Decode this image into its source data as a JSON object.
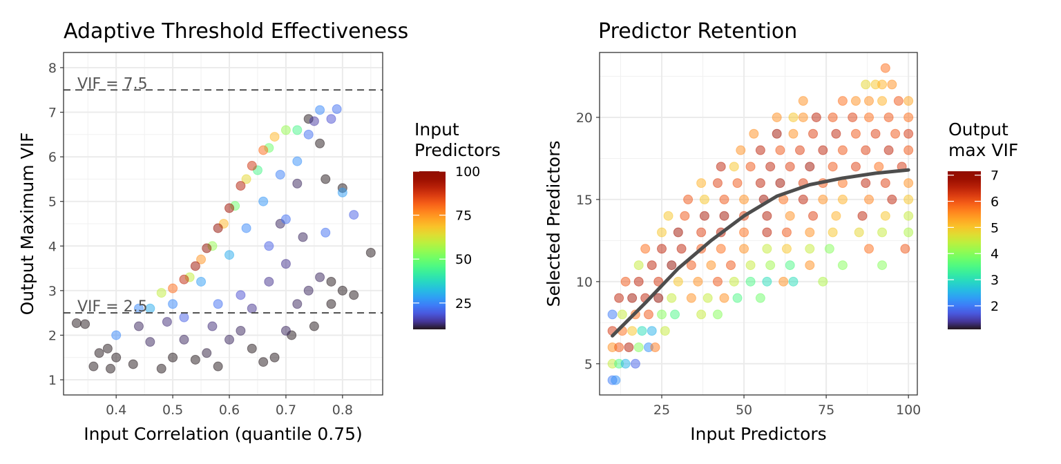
{
  "chart_data": [
    {
      "type": "scatter",
      "title": "Adaptive Threshold Effectiveness",
      "xlabel": "Input Correlation (quantile 0.75)",
      "ylabel": "Output Maximum VIF",
      "xlim": [
        0.307,
        0.871
      ],
      "ylim": [
        0.66,
        8.34
      ],
      "xticks": [
        0.4,
        0.5,
        0.6,
        0.7,
        0.8
      ],
      "xtick_labels": [
        "0.4",
        "0.5",
        "0.6",
        "0.7",
        "0.8"
      ],
      "yticks": [
        1,
        2,
        3,
        4,
        5,
        6,
        7,
        8
      ],
      "ytick_labels": [
        "1",
        "2",
        "3",
        "4",
        "5",
        "6",
        "7",
        "8"
      ],
      "grid": true,
      "hlines": [
        {
          "y": 7.5,
          "label": "VIF = 7.5"
        },
        {
          "y": 2.5,
          "label": "VIF = 2.5"
        }
      ],
      "color_legend": {
        "title_lines": [
          "Input",
          "Predictors"
        ],
        "range": [
          10,
          100
        ],
        "ticks": [
          25,
          50,
          75,
          100
        ],
        "tick_labels": [
          "25",
          "50",
          "75",
          "100"
        ],
        "colormap": "turbo"
      },
      "legend_position": "right",
      "point_columns": [
        "x",
        "y",
        "color"
      ],
      "points": [
        [
          0.48,
          2.95,
          60
        ],
        [
          0.5,
          3.05,
          80
        ],
        [
          0.52,
          3.25,
          90
        ],
        [
          0.54,
          3.55,
          95
        ],
        [
          0.56,
          3.95,
          100
        ],
        [
          0.58,
          4.4,
          98
        ],
        [
          0.6,
          4.85,
          95
        ],
        [
          0.62,
          5.35,
          92
        ],
        [
          0.64,
          5.8,
          88
        ],
        [
          0.66,
          6.15,
          80
        ],
        [
          0.68,
          6.45,
          70
        ],
        [
          0.7,
          6.6,
          55
        ],
        [
          0.72,
          6.6,
          45
        ],
        [
          0.55,
          3.7,
          75
        ],
        [
          0.59,
          4.5,
          70
        ],
        [
          0.63,
          5.5,
          65
        ],
        [
          0.67,
          6.2,
          50
        ],
        [
          0.53,
          3.3,
          60
        ],
        [
          0.57,
          4.0,
          55
        ],
        [
          0.61,
          4.9,
          50
        ],
        [
          0.65,
          5.7,
          45
        ],
        [
          0.46,
          2.6,
          30
        ],
        [
          0.5,
          2.7,
          25
        ],
        [
          0.55,
          3.2,
          28
        ],
        [
          0.6,
          3.8,
          30
        ],
        [
          0.63,
          4.4,
          25
        ],
        [
          0.66,
          5.0,
          27
        ],
        [
          0.69,
          5.6,
          24
        ],
        [
          0.72,
          5.9,
          26
        ],
        [
          0.74,
          6.5,
          22
        ],
        [
          0.76,
          7.05,
          25
        ],
        [
          0.79,
          7.07,
          22
        ],
        [
          0.78,
          6.85,
          18
        ],
        [
          0.75,
          6.8,
          15
        ],
        [
          0.7,
          4.6,
          22
        ],
        [
          0.67,
          4.0,
          20
        ],
        [
          0.58,
          2.7,
          22
        ],
        [
          0.52,
          2.4,
          20
        ],
        [
          0.44,
          2.6,
          25
        ],
        [
          0.4,
          2.0,
          25
        ],
        [
          0.8,
          5.2,
          28
        ],
        [
          0.82,
          4.7,
          20
        ],
        [
          0.77,
          4.3,
          22
        ],
        [
          0.62,
          2.9,
          18
        ],
        [
          0.33,
          2.27,
          10
        ],
        [
          0.345,
          2.25,
          10
        ],
        [
          0.36,
          1.3,
          10
        ],
        [
          0.37,
          1.6,
          10
        ],
        [
          0.385,
          1.7,
          10
        ],
        [
          0.39,
          1.25,
          10
        ],
        [
          0.4,
          1.5,
          10
        ],
        [
          0.43,
          1.35,
          10
        ],
        [
          0.44,
          2.2,
          12
        ],
        [
          0.46,
          1.85,
          12
        ],
        [
          0.48,
          1.25,
          10
        ],
        [
          0.5,
          1.5,
          10
        ],
        [
          0.52,
          1.9,
          12
        ],
        [
          0.54,
          1.45,
          10
        ],
        [
          0.56,
          1.6,
          11
        ],
        [
          0.58,
          1.3,
          10
        ],
        [
          0.6,
          1.9,
          12
        ],
        [
          0.62,
          2.1,
          12
        ],
        [
          0.64,
          1.7,
          10
        ],
        [
          0.66,
          1.4,
          10
        ],
        [
          0.68,
          1.5,
          10
        ],
        [
          0.7,
          2.1,
          12
        ],
        [
          0.72,
          2.7,
          12
        ],
        [
          0.74,
          3.0,
          12
        ],
        [
          0.76,
          3.3,
          12
        ],
        [
          0.78,
          3.2,
          10
        ],
        [
          0.8,
          3.0,
          10
        ],
        [
          0.82,
          2.9,
          10
        ],
        [
          0.85,
          3.85,
          10
        ],
        [
          0.8,
          5.3,
          10
        ],
        [
          0.77,
          5.5,
          10
        ],
        [
          0.76,
          6.3,
          10
        ],
        [
          0.74,
          6.85,
          10
        ],
        [
          0.73,
          4.2,
          12
        ],
        [
          0.7,
          3.6,
          14
        ],
        [
          0.67,
          3.2,
          14
        ],
        [
          0.64,
          2.6,
          14
        ],
        [
          0.57,
          2.2,
          13
        ],
        [
          0.49,
          2.3,
          13
        ],
        [
          0.75,
          2.2,
          10
        ],
        [
          0.71,
          2.0,
          10
        ],
        [
          0.78,
          2.7,
          10
        ],
        [
          0.69,
          4.5,
          12
        ],
        [
          0.72,
          5.4,
          12
        ]
      ]
    },
    {
      "type": "scatter",
      "title": "Predictor Retention",
      "xlabel": "Input Predictors",
      "ylabel": "Selected Predictors",
      "xlim": [
        6.1,
        102.7
      ],
      "ylim": [
        3.1,
        23.95
      ],
      "xticks": [
        25,
        50,
        75,
        100
      ],
      "xtick_labels": [
        "25",
        "50",
        "75",
        "100"
      ],
      "yticks": [
        5,
        10,
        15,
        20
      ],
      "ytick_labels": [
        "5",
        "10",
        "15",
        "20"
      ],
      "grid": true,
      "color_legend": {
        "title_lines": [
          "Output",
          "max VIF"
        ],
        "range": [
          1.1,
          7.15
        ],
        "ticks": [
          2,
          3,
          4,
          5,
          6,
          7
        ],
        "tick_labels": [
          "2",
          "3",
          "4",
          "5",
          "6",
          "7"
        ],
        "colormap": "turbo"
      },
      "legend_position": "right",
      "point_columns": [
        "x",
        "y",
        "color"
      ],
      "points": [
        [
          10,
          4,
          2
        ],
        [
          11,
          4,
          2.2
        ],
        [
          10,
          5,
          4.5
        ],
        [
          12,
          5,
          3.5
        ],
        [
          14,
          5,
          2.5
        ],
        [
          17,
          5,
          1.8
        ],
        [
          10,
          6,
          5.5
        ],
        [
          12,
          6,
          6
        ],
        [
          15,
          6,
          6.6
        ],
        [
          18,
          6,
          4
        ],
        [
          21,
          6,
          2.2
        ],
        [
          23,
          6,
          5.7
        ],
        [
          10,
          7,
          6.3
        ],
        [
          13,
          7,
          5.8
        ],
        [
          16,
          7,
          5
        ],
        [
          19,
          7,
          3
        ],
        [
          22,
          7,
          2.5
        ],
        [
          26,
          7,
          4.5
        ],
        [
          10,
          8,
          2
        ],
        [
          13,
          8,
          4.5
        ],
        [
          17,
          8,
          5.8
        ],
        [
          21,
          8,
          6
        ],
        [
          25,
          8,
          4
        ],
        [
          29,
          8,
          3.5
        ],
        [
          37,
          8,
          4.5
        ],
        [
          42,
          8,
          4
        ],
        [
          12,
          9,
          6.5
        ],
        [
          16,
          9,
          6.8
        ],
        [
          20,
          9,
          6.5
        ],
        [
          24,
          9,
          7
        ],
        [
          28,
          9,
          4.5
        ],
        [
          34,
          9,
          5.5
        ],
        [
          39,
          9,
          4.5
        ],
        [
          44,
          9,
          5.5
        ],
        [
          48,
          9,
          3.5
        ],
        [
          55,
          9,
          3.8
        ],
        [
          14,
          10,
          6
        ],
        [
          18,
          10,
          6.5
        ],
        [
          24,
          10,
          6.3
        ],
        [
          30,
          10,
          5
        ],
        [
          36,
          10,
          5.5
        ],
        [
          42,
          10,
          6
        ],
        [
          47,
          10,
          4.5
        ],
        [
          52,
          10,
          3.5
        ],
        [
          57,
          10,
          3
        ],
        [
          62,
          10,
          5.5
        ],
        [
          65,
          10,
          3
        ],
        [
          74,
          10,
          4.3
        ],
        [
          18,
          11,
          4.5
        ],
        [
          22,
          11,
          6.5
        ],
        [
          28,
          11,
          7
        ],
        [
          34,
          11,
          6
        ],
        [
          40,
          11,
          5.5
        ],
        [
          46,
          11,
          6
        ],
        [
          52,
          11,
          4.5
        ],
        [
          58,
          11,
          4.2
        ],
        [
          64,
          11,
          3.5
        ],
        [
          70,
          11,
          5.5
        ],
        [
          80,
          11,
          4
        ],
        [
          92,
          11,
          4
        ],
        [
          20,
          12,
          5.8
        ],
        [
          25,
          12,
          6.5
        ],
        [
          31,
          12,
          6.5
        ],
        [
          37,
          12,
          6
        ],
        [
          43,
          12,
          5.8
        ],
        [
          50,
          12,
          5.5
        ],
        [
          57,
          12,
          4.5
        ],
        [
          63,
          12,
          5
        ],
        [
          70,
          12,
          4.5
        ],
        [
          76,
          12,
          4
        ],
        [
          88,
          12,
          5.8
        ],
        [
          99,
          12,
          6
        ],
        [
          25,
          13,
          5
        ],
        [
          30,
          13,
          6.8
        ],
        [
          37,
          13,
          6.2
        ],
        [
          43,
          13,
          6.5
        ],
        [
          50,
          13,
          5.8
        ],
        [
          57,
          13,
          6.5
        ],
        [
          63,
          13,
          6
        ],
        [
          70,
          13,
          5.5
        ],
        [
          77,
          13,
          5
        ],
        [
          85,
          13,
          4.8
        ],
        [
          92,
          13,
          4.5
        ],
        [
          100,
          13,
          4.3
        ],
        [
          27,
          14,
          5
        ],
        [
          32,
          14,
          6
        ],
        [
          38,
          14,
          6.7
        ],
        [
          44,
          14,
          6.8
        ],
        [
          50,
          14,
          6.2
        ],
        [
          57,
          14,
          6.6
        ],
        [
          64,
          14,
          5.5
        ],
        [
          71,
          14,
          6.2
        ],
        [
          78,
          14,
          5.2
        ],
        [
          86,
          14,
          6.5
        ],
        [
          93,
          14,
          5
        ],
        [
          100,
          14,
          4.5
        ],
        [
          33,
          15,
          6
        ],
        [
          38,
          15,
          5
        ],
        [
          44,
          15,
          6
        ],
        [
          50,
          15,
          5.5
        ],
        [
          56,
          15,
          6.8
        ],
        [
          62,
          15,
          5.8
        ],
        [
          68,
          15,
          6.5
        ],
        [
          74,
          15,
          5.5
        ],
        [
          80,
          15,
          5.2
        ],
        [
          88,
          15,
          5.6
        ],
        [
          95,
          15,
          6.5
        ],
        [
          100,
          15,
          5
        ],
        [
          37,
          16,
          5.2
        ],
        [
          42,
          16,
          6.2
        ],
        [
          48,
          16,
          6
        ],
        [
          55,
          16,
          6.5
        ],
        [
          61,
          16,
          6.8
        ],
        [
          68,
          16,
          6.2
        ],
        [
          74,
          16,
          6
        ],
        [
          80,
          16,
          5.8
        ],
        [
          87,
          16,
          6.5
        ],
        [
          93,
          16,
          6.2
        ],
        [
          100,
          16,
          5.5
        ],
        [
          43,
          17,
          6.5
        ],
        [
          47,
          17,
          5
        ],
        [
          52,
          17,
          6
        ],
        [
          58,
          17,
          6.5
        ],
        [
          64,
          17,
          6.2
        ],
        [
          70,
          17,
          6.8
        ],
        [
          77,
          17,
          6
        ],
        [
          84,
          17,
          6.2
        ],
        [
          91,
          17,
          5.8
        ],
        [
          98,
          17,
          6.3
        ],
        [
          49,
          18,
          5.5
        ],
        [
          55,
          18,
          6.5
        ],
        [
          61,
          18,
          6
        ],
        [
          67,
          18,
          6.2
        ],
        [
          74,
          18,
          6.5
        ],
        [
          80,
          18,
          6
        ],
        [
          87,
          18,
          6.2
        ],
        [
          94,
          18,
          6.5
        ],
        [
          100,
          18,
          6
        ],
        [
          53,
          19,
          5.5
        ],
        [
          60,
          19,
          6.8
        ],
        [
          65,
          19,
          5.5
        ],
        [
          71,
          19,
          6.2
        ],
        [
          78,
          19,
          6.5
        ],
        [
          84,
          19,
          6
        ],
        [
          90,
          19,
          6.2
        ],
        [
          96,
          19,
          6
        ],
        [
          100,
          19,
          6.3
        ],
        [
          60,
          20,
          5.5
        ],
        [
          65,
          20,
          5
        ],
        [
          68,
          20,
          5.5
        ],
        [
          72,
          20,
          6.5
        ],
        [
          77,
          20,
          6
        ],
        [
          83,
          20,
          6.2
        ],
        [
          88,
          20,
          5.8
        ],
        [
          94,
          20,
          6
        ],
        [
          100,
          20,
          5.8
        ],
        [
          68,
          21,
          5.5
        ],
        [
          80,
          21,
          5.8
        ],
        [
          84,
          21,
          5.5
        ],
        [
          88,
          21,
          5.5
        ],
        [
          92,
          21,
          5.2
        ],
        [
          97,
          21,
          6
        ],
        [
          100,
          21,
          5.3
        ],
        [
          87,
          22,
          4.8
        ],
        [
          90,
          22,
          5
        ],
        [
          92,
          22,
          5.2
        ],
        [
          95,
          22,
          5.5
        ],
        [
          93,
          23,
          5.8
        ]
      ],
      "smooth_line": {
        "color": "#4d4d4d",
        "x": [
          10,
          20,
          30,
          40,
          50,
          60,
          70,
          80,
          90,
          100
        ],
        "y": [
          6.7,
          8.7,
          10.8,
          12.5,
          14.0,
          15.2,
          15.9,
          16.3,
          16.6,
          16.8
        ]
      }
    }
  ]
}
